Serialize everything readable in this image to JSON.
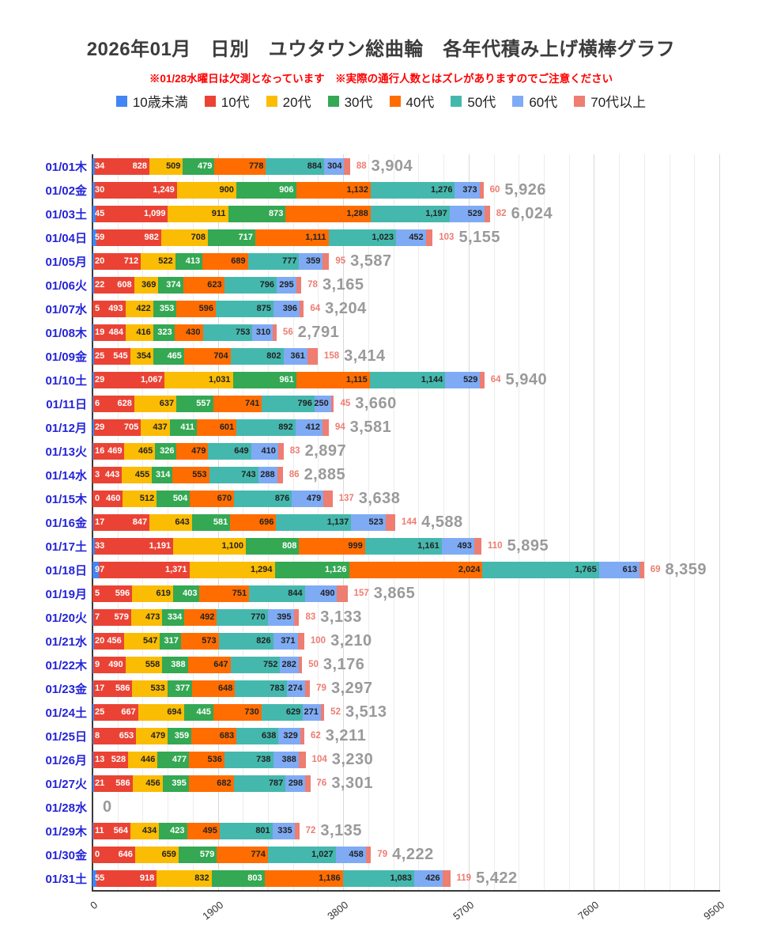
{
  "header": {
    "title": "2026年01月　日別　ユウタウン総曲輪　各年代積み上げ横棒グラフ",
    "note": "※01/28水曜日は欠測となっています　※実際の通行人数とはズレがありますのでご注意ください"
  },
  "colors": {
    "date_label": "#2424d8",
    "total_label": "#9a9a9a",
    "note_red": "#ff0000",
    "axis": "#3a3a3a"
  },
  "chart_data": {
    "type": "bar",
    "orientation": "horizontal-stacked",
    "title": "2026年01月　日別　ユウタウン総曲輪　各年代積み上げ横棒グラフ",
    "xlabel": "",
    "ylabel": "",
    "xlim": [
      0,
      9500
    ],
    "x_ticks": [
      0,
      1900,
      3800,
      5700,
      7600,
      9500
    ],
    "minor_tick_step": 380,
    "grid": true,
    "legend_position": "top",
    "series_names": [
      "10歳未満",
      "10代",
      "20代",
      "30代",
      "40代",
      "50代",
      "60代",
      "70代以上"
    ],
    "series_colors": [
      "#4285F4",
      "#EA4335",
      "#FBBC04",
      "#34A853",
      "#FF6D01",
      "#45B8AE",
      "#7FABF5",
      "#EE7D72"
    ],
    "annotation_text_colors": [
      "#ffffff",
      "#ffffff",
      "#222222",
      "#ffffff",
      "#222222",
      "#222222",
      "#222222",
      "#EE7D72"
    ],
    "missing_note": "01/28水 is a missing-measurement day shown as 0",
    "rows": [
      {
        "date": "01/01木",
        "values": [
          34,
          828,
          509,
          479,
          778,
          884,
          304,
          88
        ],
        "total": 3904
      },
      {
        "date": "01/02金",
        "values": [
          30,
          1249,
          900,
          906,
          1132,
          1276,
          373,
          60
        ],
        "total": 5926
      },
      {
        "date": "01/03土",
        "values": [
          45,
          1099,
          911,
          873,
          1288,
          1197,
          529,
          82
        ],
        "total": 6024
      },
      {
        "date": "01/04日",
        "values": [
          59,
          982,
          708,
          717,
          1111,
          1023,
          452,
          103
        ],
        "total": 5155
      },
      {
        "date": "01/05月",
        "values": [
          20,
          712,
          522,
          413,
          689,
          777,
          359,
          95
        ],
        "total": 3587
      },
      {
        "date": "01/06火",
        "values": [
          22,
          608,
          369,
          374,
          623,
          796,
          295,
          78
        ],
        "total": 3165
      },
      {
        "date": "01/07水",
        "values": [
          5,
          493,
          422,
          353,
          596,
          875,
          396,
          64
        ],
        "total": 3204
      },
      {
        "date": "01/08木",
        "values": [
          19,
          484,
          416,
          323,
          430,
          753,
          310,
          56
        ],
        "total": 2791
      },
      {
        "date": "01/09金",
        "values": [
          25,
          545,
          354,
          465,
          704,
          802,
          361,
          158
        ],
        "total": 3414
      },
      {
        "date": "01/10土",
        "values": [
          29,
          1067,
          1031,
          961,
          1115,
          1144,
          529,
          64
        ],
        "total": 5940
      },
      {
        "date": "01/11日",
        "values": [
          6,
          628,
          637,
          557,
          741,
          796,
          250,
          45
        ],
        "total": 3660
      },
      {
        "date": "01/12月",
        "values": [
          29,
          705,
          437,
          411,
          601,
          892,
          412,
          94
        ],
        "total": 3581
      },
      {
        "date": "01/13火",
        "values": [
          16,
          469,
          465,
          326,
          479,
          649,
          410,
          83
        ],
        "total": 2897
      },
      {
        "date": "01/14水",
        "values": [
          3,
          443,
          455,
          314,
          553,
          743,
          288,
          86
        ],
        "total": 2885
      },
      {
        "date": "01/15木",
        "values": [
          0,
          460,
          512,
          504,
          670,
          876,
          479,
          137
        ],
        "total": 3638
      },
      {
        "date": "01/16金",
        "values": [
          17,
          847,
          643,
          581,
          696,
          1137,
          523,
          144
        ],
        "total": 4588
      },
      {
        "date": "01/17土",
        "values": [
          33,
          1191,
          1100,
          808,
          999,
          1161,
          493,
          110
        ],
        "total": 5895
      },
      {
        "date": "01/18日",
        "values": [
          97,
          1371,
          1294,
          1126,
          2024,
          1765,
          613,
          69
        ],
        "total": 8359
      },
      {
        "date": "01/19月",
        "values": [
          5,
          596,
          619,
          403,
          751,
          844,
          490,
          157
        ],
        "total": 3865
      },
      {
        "date": "01/20火",
        "values": [
          7,
          579,
          473,
          334,
          492,
          770,
          395,
          83
        ],
        "total": 3133
      },
      {
        "date": "01/21水",
        "values": [
          20,
          456,
          547,
          317,
          573,
          826,
          371,
          100
        ],
        "total": 3210
      },
      {
        "date": "01/22木",
        "values": [
          9,
          490,
          558,
          388,
          647,
          752,
          282,
          50
        ],
        "total": 3176
      },
      {
        "date": "01/23金",
        "values": [
          17,
          586,
          533,
          377,
          648,
          783,
          274,
          79
        ],
        "total": 3297
      },
      {
        "date": "01/24土",
        "values": [
          25,
          667,
          694,
          445,
          730,
          629,
          271,
          52
        ],
        "total": 3513
      },
      {
        "date": "01/25日",
        "values": [
          8,
          653,
          479,
          359,
          683,
          638,
          329,
          62
        ],
        "total": 3211
      },
      {
        "date": "01/26月",
        "values": [
          13,
          528,
          446,
          477,
          536,
          738,
          388,
          104
        ],
        "total": 3230
      },
      {
        "date": "01/27火",
        "values": [
          21,
          586,
          456,
          395,
          682,
          787,
          298,
          76
        ],
        "total": 3301
      },
      {
        "date": "01/28水",
        "values": null,
        "total": 0,
        "missing": true
      },
      {
        "date": "01/29木",
        "values": [
          11,
          564,
          434,
          423,
          495,
          801,
          335,
          72
        ],
        "total": 3135
      },
      {
        "date": "01/30金",
        "values": [
          0,
          646,
          659,
          579,
          774,
          1027,
          458,
          79
        ],
        "total": 4222
      },
      {
        "date": "01/31土",
        "values": [
          55,
          918,
          832,
          803,
          1186,
          1083,
          426,
          119
        ],
        "total": 5422
      }
    ]
  }
}
